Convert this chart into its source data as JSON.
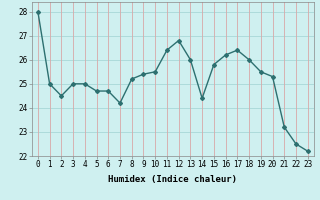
{
  "x": [
    0,
    1,
    2,
    3,
    4,
    5,
    6,
    7,
    8,
    9,
    10,
    11,
    12,
    13,
    14,
    15,
    16,
    17,
    18,
    19,
    20,
    21,
    22,
    23
  ],
  "y": [
    28.0,
    25.0,
    24.5,
    25.0,
    25.0,
    24.7,
    24.7,
    24.2,
    25.2,
    25.4,
    25.5,
    26.4,
    26.8,
    26.0,
    24.4,
    25.8,
    26.2,
    26.4,
    26.0,
    25.5,
    25.3,
    23.2,
    22.5,
    22.2
  ],
  "xlim": [
    -0.5,
    23.5
  ],
  "ylim": [
    22,
    28.4
  ],
  "yticks": [
    22,
    23,
    24,
    25,
    26,
    27,
    28
  ],
  "xticks": [
    0,
    1,
    2,
    3,
    4,
    5,
    6,
    7,
    8,
    9,
    10,
    11,
    12,
    13,
    14,
    15,
    16,
    17,
    18,
    19,
    20,
    21,
    22,
    23
  ],
  "xlabel": "Humidex (Indice chaleur)",
  "line_color": "#2d7070",
  "marker": "D",
  "marker_size": 2.0,
  "bg_color": "#cff0f0",
  "grid_color_h": "#a8d8d8",
  "grid_color_v": "#d8a8a8",
  "tick_fontsize": 5.5,
  "xlabel_fontsize": 6.5,
  "line_width": 1.0
}
